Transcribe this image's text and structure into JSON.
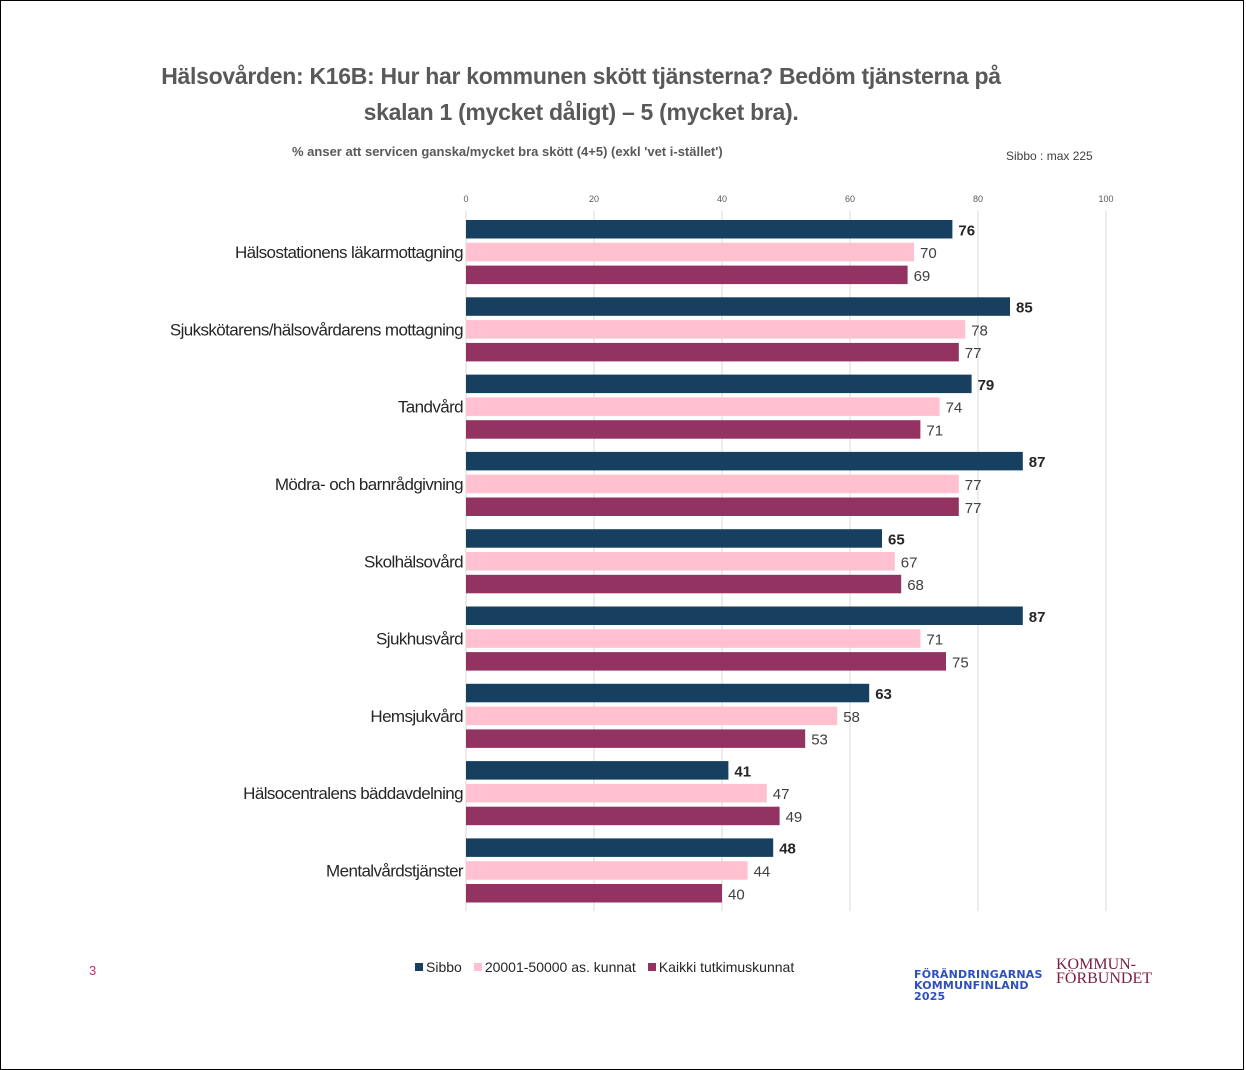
{
  "title_line1": "Hälsovården: K16B: Hur har kommunen skött tjänsterna? Bedöm tjänsterna på",
  "title_line2": "skalan 1 (mycket dåligt)    – 5 (mycket bra).",
  "subtitle": "% anser att servicen ganska/mycket bra skött (4+5) (exkl 'vet i-stället')",
  "note": "Sibbo : max 225",
  "page_number": "3",
  "colors": {
    "sibbo": "#173f5f",
    "mid": "#ffc0cf",
    "all": "#933362",
    "grid": "#d9d9d9"
  },
  "chart_data": {
    "type": "bar",
    "orientation": "horizontal",
    "xlim": [
      0,
      100
    ],
    "ticks": [
      "0",
      "20",
      "40",
      "60",
      "80",
      "100"
    ],
    "grid": true,
    "legend_position": "bottom",
    "categories": [
      "Hälsostationens läkarmottagning",
      "Sjukskötarens/hälsovårdarens mottagning",
      "Tandvård",
      "Mödra- och barnrådgivning",
      "Skolhälsovård",
      "Sjukhusvård",
      "Hemsjukvård",
      "Hälsocentralens bäddavdelning",
      "Mentalvårdstjänster"
    ],
    "series": [
      {
        "name": "Sibbo",
        "values": [
          76,
          85,
          79,
          87,
          65,
          87,
          63,
          41,
          48
        ]
      },
      {
        "name": "20001-50000 as. kunnat",
        "values": [
          70,
          78,
          74,
          77,
          67,
          71,
          58,
          47,
          44
        ]
      },
      {
        "name": "Kaikki tutkimuskunnat",
        "values": [
          69,
          77,
          71,
          77,
          68,
          75,
          53,
          49,
          40
        ]
      }
    ]
  },
  "logos": {
    "forandring": [
      "FÖRÄNDRINGARNAS",
      "KOMMUNFINLAND",
      "2025"
    ],
    "kommunforbundet": [
      "KOMMUN-",
      "FÖRBUNDET"
    ]
  }
}
